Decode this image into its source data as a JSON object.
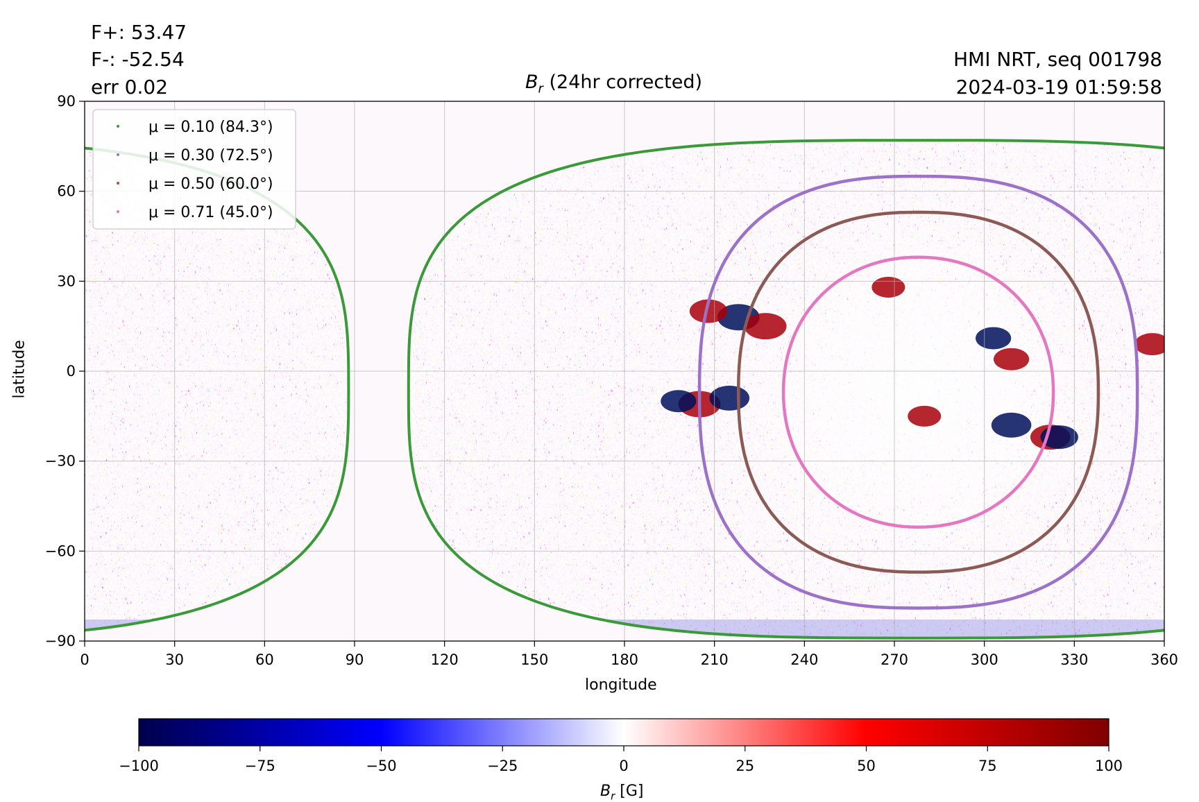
{
  "header": {
    "flux_pos": "F+: 53.47",
    "flux_neg": "F-: -52.54",
    "err": "err 0.02",
    "source": "HMI NRT, seq 001798",
    "timestamp": "2024-03-19 01:59:58"
  },
  "chart_data": {
    "type": "heatmap",
    "title_symbol": "B",
    "title_subscript": "r",
    "title_rest": " (24hr corrected)",
    "xlabel": "longitude",
    "ylabel": "latitude",
    "xlim": [
      0,
      360
    ],
    "ylim": [
      -90,
      90
    ],
    "xticks": [
      0,
      30,
      60,
      90,
      120,
      150,
      180,
      210,
      240,
      270,
      300,
      330,
      360
    ],
    "yticks": [
      -90,
      -60,
      -30,
      0,
      30,
      60,
      90
    ],
    "ytick_labels": [
      "−90",
      "−60",
      "−30",
      "0",
      "30",
      "60",
      "90"
    ],
    "grid": true,
    "legend_position": "upper-left",
    "series": [
      {
        "name": "μ = 0.10 (84.3°)",
        "color": "#3a9a3a",
        "mu": 0.1,
        "angle_deg": 84.3,
        "contour": {
          "lon_center": 278,
          "lat_center": -6,
          "lon_half_width": 170,
          "lat_top": 77,
          "lat_bottom": -89
        }
      },
      {
        "name": "μ = 0.30 (72.5°)",
        "color": "#9b72c8",
        "mu": 0.3,
        "angle_deg": 72.5,
        "contour": {
          "lon_center": 278,
          "lat_center": -7,
          "lon_half_width": 73,
          "lat_top": 65,
          "lat_bottom": -79
        }
      },
      {
        "name": "μ = 0.50 (60.0°)",
        "color": "#8b5a55",
        "mu": 0.5,
        "angle_deg": 60.0,
        "contour": {
          "lon_center": 278,
          "lat_center": -7,
          "lon_half_width": 60,
          "lat_top": 53,
          "lat_bottom": -67
        }
      },
      {
        "name": "μ = 0.71 (45.0°)",
        "color": "#e377c2",
        "mu": 0.71,
        "angle_deg": 45.0,
        "contour": {
          "lon_center": 278,
          "lat_center": -7,
          "lon_half_width": 45,
          "lat_top": 38,
          "lat_bottom": -52
        }
      }
    ],
    "active_regions": [
      {
        "lon": 218,
        "lat": 18,
        "polarity": "negative",
        "strength": 100
      },
      {
        "lon": 227,
        "lat": 15,
        "polarity": "positive",
        "strength": 100
      },
      {
        "lon": 208,
        "lat": 20,
        "polarity": "positive",
        "strength": 80
      },
      {
        "lon": 205,
        "lat": -11,
        "polarity": "positive",
        "strength": 100
      },
      {
        "lon": 215,
        "lat": -9,
        "polarity": "negative",
        "strength": 90
      },
      {
        "lon": 198,
        "lat": -10,
        "polarity": "negative",
        "strength": 70
      },
      {
        "lon": 309,
        "lat": -18,
        "polarity": "negative",
        "strength": 90
      },
      {
        "lon": 322,
        "lat": -22,
        "polarity": "positive",
        "strength": 90
      },
      {
        "lon": 325,
        "lat": -22,
        "polarity": "negative",
        "strength": 80
      },
      {
        "lon": 303,
        "lat": 11,
        "polarity": "negative",
        "strength": 70
      },
      {
        "lon": 309,
        "lat": 4,
        "polarity": "positive",
        "strength": 70
      },
      {
        "lon": 356,
        "lat": 9,
        "polarity": "positive",
        "strength": 70
      },
      {
        "lon": 268,
        "lat": 28,
        "polarity": "positive",
        "strength": 60
      },
      {
        "lon": 280,
        "lat": -15,
        "polarity": "positive",
        "strength": 60
      }
    ],
    "colorbar": {
      "label_symbol": "B",
      "label_subscript": "r",
      "label_units": " [G]",
      "ticks": [
        -100,
        -75,
        -50,
        -25,
        0,
        25,
        50,
        75,
        100
      ],
      "tick_labels": [
        "−100",
        "−75",
        "−50",
        "−25",
        "0",
        "25",
        "50",
        "75",
        "100"
      ],
      "range": [
        -100,
        100
      ],
      "colormap": "seismic",
      "colors": [
        "#00004c",
        "#0000ff",
        "#ffffff",
        "#ff0000",
        "#800000"
      ]
    }
  }
}
